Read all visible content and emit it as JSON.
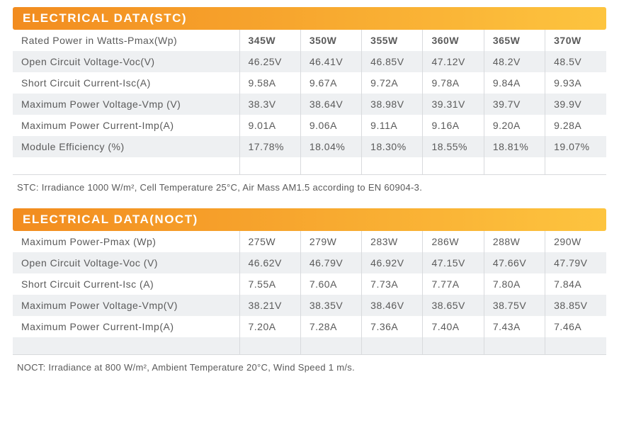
{
  "styling": {
    "gradient_start": "#f28c1f",
    "gradient_end": "#fdc43f",
    "text_color": "#5a5a5a",
    "row_even_bg": "#eef0f2",
    "row_odd_bg": "#ffffff",
    "border_color": "#d8dadd",
    "header_text_color": "#ffffff",
    "header_fontsize": 17,
    "cell_fontsize": 14,
    "note_fontsize": 13
  },
  "section1": {
    "title": "ELECTRICAL DATA(STC)",
    "rows": [
      {
        "label": "Rated Power in Watts-Pmax(Wp)",
        "values": [
          "345W",
          "350W",
          "355W",
          "360W",
          "365W",
          "370W"
        ],
        "bold": true
      },
      {
        "label": "Open Circuit Voltage-Voc(V)",
        "values": [
          "46.25V",
          "46.41V",
          "46.85V",
          "47.12V",
          "48.2V",
          "48.5V"
        ]
      },
      {
        "label": "Short Circuit Current-Isc(A)",
        "values": [
          "9.58A",
          "9.67A",
          "9.72A",
          "9.78A",
          "9.84A",
          "9.93A"
        ]
      },
      {
        "label": "Maximum Power Voltage-Vmp (V)",
        "values": [
          "38.3V",
          "38.64V",
          "38.98V",
          "39.31V",
          "39.7V",
          "39.9V"
        ]
      },
      {
        "label": "Maximum Power Current-Imp(A)",
        "values": [
          "9.01A",
          "9.06A",
          "9.11A",
          "9.16A",
          "9.20A",
          "9.28A"
        ]
      },
      {
        "label": "Module Efficiency (%)",
        "values": [
          "17.78%",
          "18.04%",
          "18.30%",
          "18.55%",
          "18.81%",
          "19.07%"
        ]
      }
    ],
    "note": "STC: Irradiance 1000 W/m², Cell Temperature 25°C, Air Mass AM1.5 according to EN 60904-3."
  },
  "section2": {
    "title": "ELECTRICAL DATA(NOCT)",
    "rows": [
      {
        "label": "Maximum Power-Pmax (Wp)",
        "values": [
          "275W",
          "279W",
          "283W",
          "286W",
          "288W",
          "290W"
        ]
      },
      {
        "label": "Open Circuit Voltage-Voc (V)",
        "values": [
          "46.62V",
          "46.79V",
          "46.92V",
          "47.15V",
          "47.66V",
          "47.79V"
        ]
      },
      {
        "label": "Short Circuit Current-Isc (A)",
        "values": [
          "7.55A",
          "7.60A",
          "7.73A",
          "7.77A",
          "7.80A",
          "7.84A"
        ]
      },
      {
        "label": "Maximum Power Voltage-Vmp(V)",
        "values": [
          "38.21V",
          "38.35V",
          "38.46V",
          "38.65V",
          "38.75V",
          "38.85V"
        ]
      },
      {
        "label": "Maximum Power Current-Imp(A)",
        "values": [
          "7.20A",
          "7.28A",
          "7.36A",
          "7.40A",
          "7.43A",
          "7.46A"
        ]
      }
    ],
    "note": "NOCT: Irradiance at 800 W/m², Ambient Temperature 20°C, Wind Speed 1 m/s."
  }
}
